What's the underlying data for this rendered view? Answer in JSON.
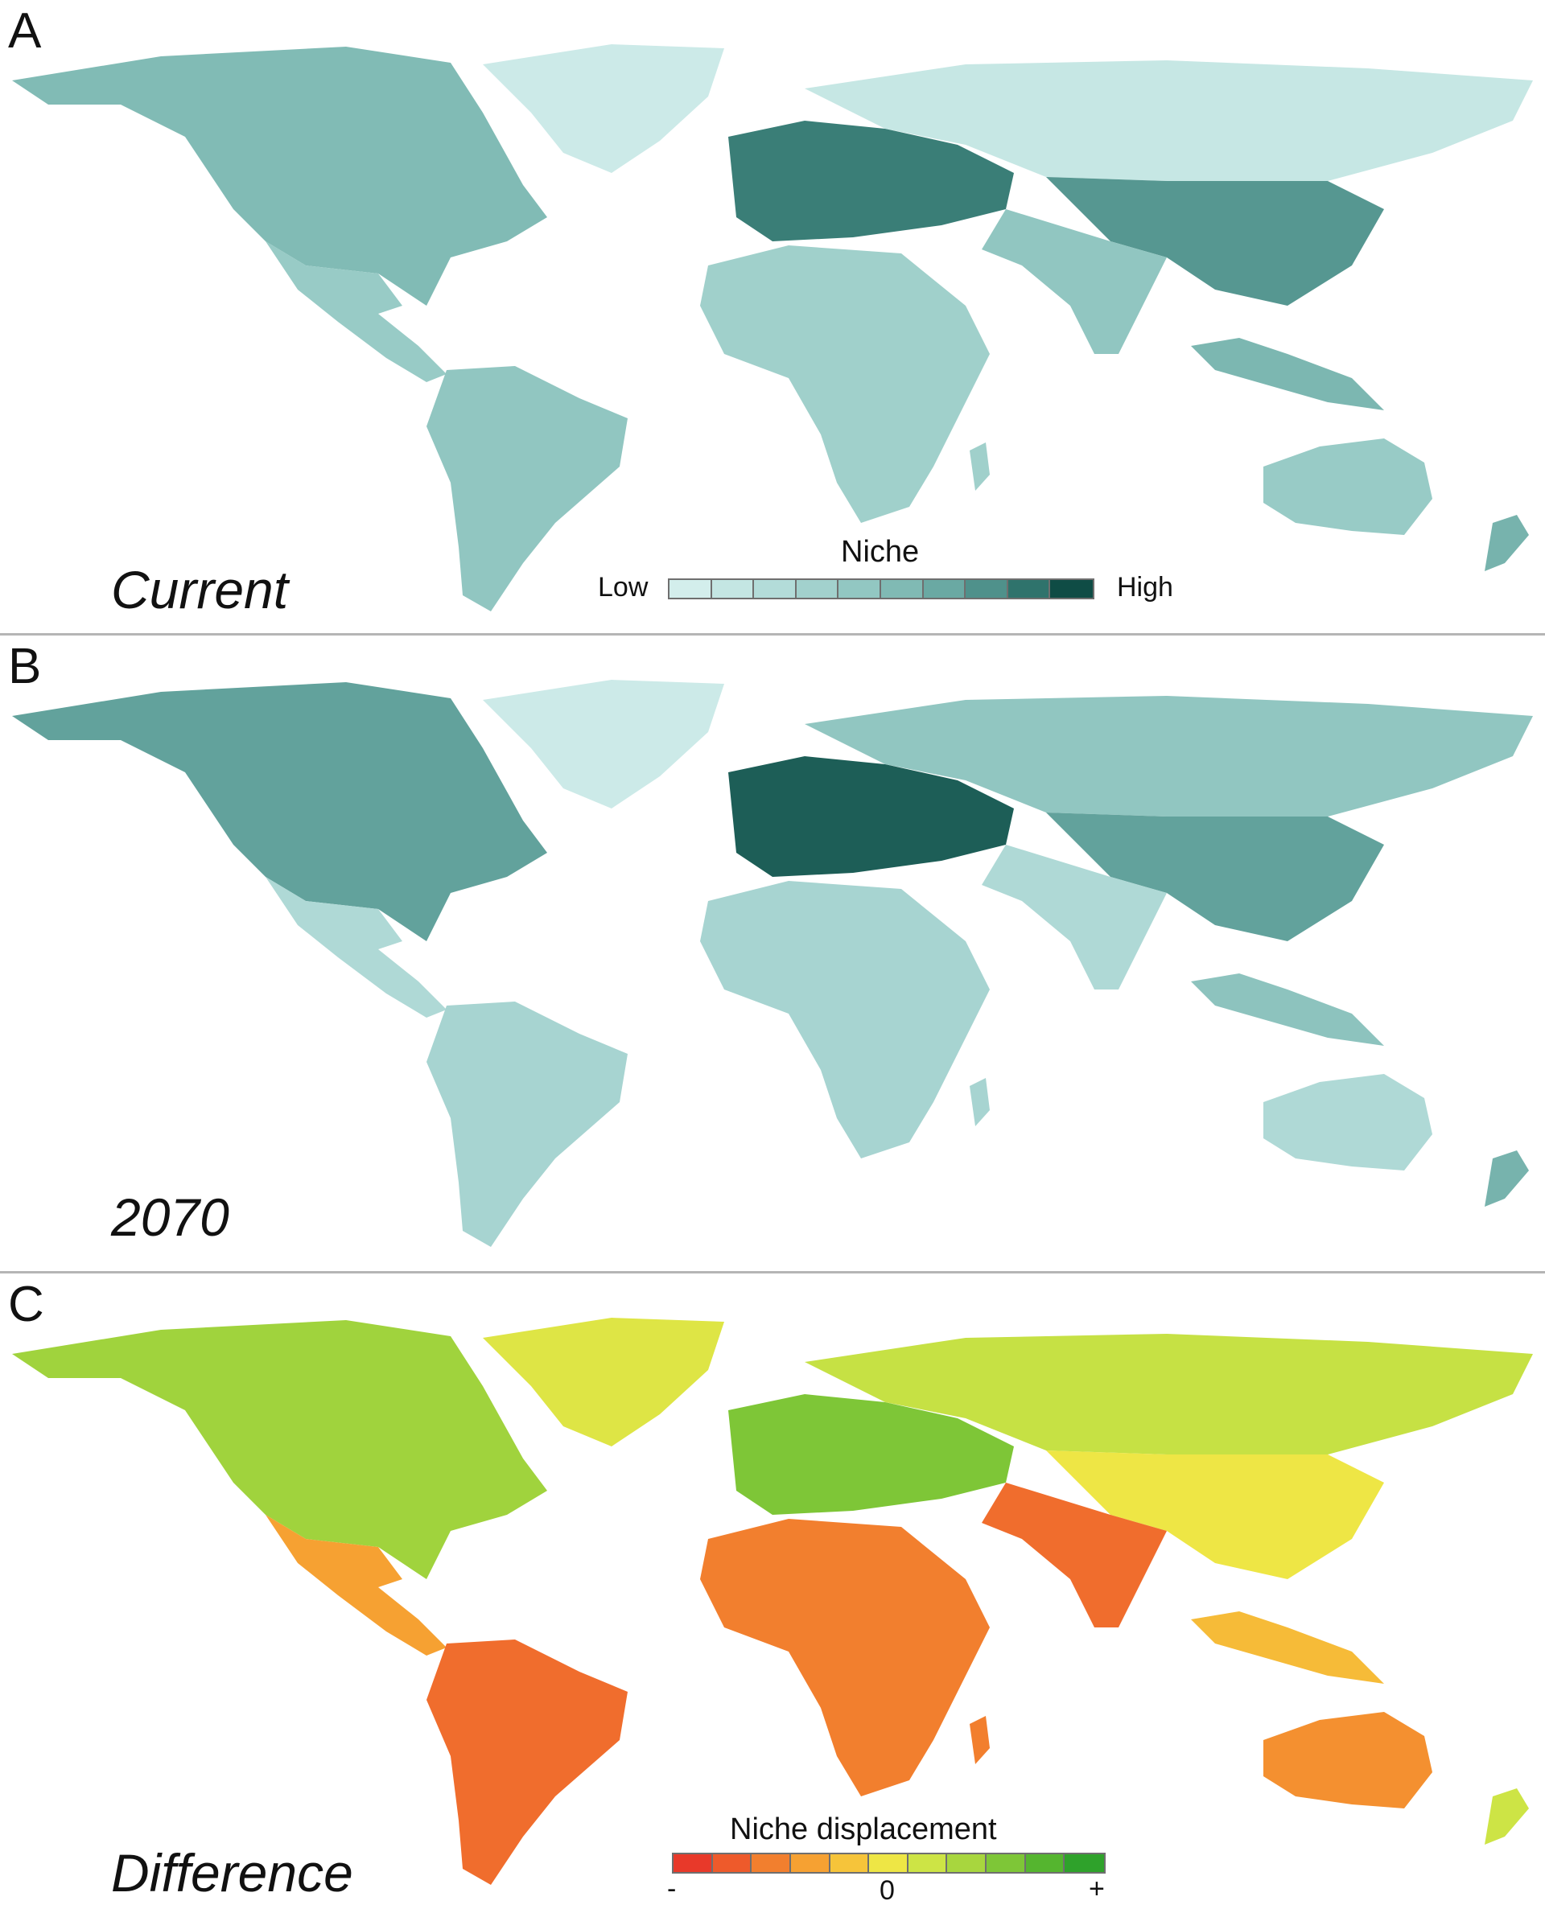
{
  "figure": {
    "panels": [
      {
        "letter": "A",
        "caption": "Current",
        "legend": {
          "title": "Niche",
          "low_label": "Low",
          "high_label": "High",
          "colors": [
            "#d3eeec",
            "#c4e6e3",
            "#b3dcd9",
            "#a2d1cd",
            "#92c7c2",
            "#80bab4",
            "#6aa9a3",
            "#4f918b",
            "#2f736c",
            "#0f4c45"
          ]
        },
        "intensity": {
          "north_america": 0.55,
          "central_america": 0.4,
          "south_america": 0.45,
          "europe": 0.85,
          "north_asia": 0.1,
          "east_asia": 0.75,
          "india": 0.45,
          "africa": 0.35,
          "australia": 0.4,
          "greenland": 0.05
        }
      },
      {
        "letter": "B",
        "caption": "2070",
        "intensity": {
          "north_america": 0.7,
          "central_america": 0.25,
          "south_america": 0.3,
          "europe": 0.95,
          "north_asia": 0.45,
          "east_asia": 0.7,
          "india": 0.25,
          "africa": 0.3,
          "australia": 0.25,
          "greenland": 0.05
        }
      },
      {
        "letter": "C",
        "caption": "Difference",
        "legend": {
          "title": "Niche displacement",
          "minus_label": "-",
          "zero_label": "0",
          "plus_label": "+",
          "colors": [
            "#e8392a",
            "#ee5a2b",
            "#f27f2e",
            "#f6a132",
            "#f6c43a",
            "#eee645",
            "#cde445",
            "#a8d63e",
            "#7ec637",
            "#55b52f",
            "#2fa22b"
          ]
        },
        "intensity": {
          "north_america": 0.72,
          "central_america": 0.3,
          "south_america": 0.15,
          "europe": 0.8,
          "north_asia": 0.62,
          "east_asia": 0.5,
          "india": 0.15,
          "africa": 0.2,
          "australia": 0.25,
          "greenland": 0.55
        }
      }
    ]
  },
  "colors": {
    "niche_low": "#d3eeec",
    "niche_high": "#0f4c45",
    "displacement_negative": "#e8392a",
    "displacement_zero": "#eee645",
    "displacement_positive": "#2fa22b",
    "divider": "#b5b5b5"
  }
}
